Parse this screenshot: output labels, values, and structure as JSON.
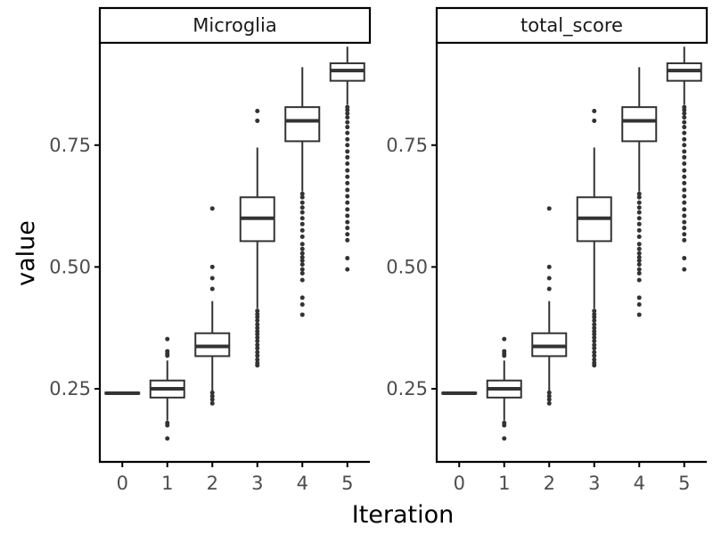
{
  "chart_data": {
    "type": "boxplot",
    "xlabel": "Iteration",
    "ylabel": "value",
    "ylim": [
      0.1,
      0.96
    ],
    "yticks": [
      0.25,
      0.5,
      0.75
    ],
    "ytick_labels": [
      "0.25",
      "0.50",
      "0.75"
    ],
    "categories": [
      "0",
      "1",
      "2",
      "3",
      "4",
      "5"
    ],
    "facets": [
      {
        "title": "Microglia",
        "boxes": [
          {
            "x": "0",
            "whisker_low": 0.238,
            "q1": 0.24,
            "median": 0.241,
            "q3": 0.242,
            "whisker_high": 0.244,
            "outliers": []
          },
          {
            "x": "1",
            "whisker_low": 0.185,
            "q1": 0.232,
            "median": 0.25,
            "q3": 0.267,
            "whisker_high": 0.308,
            "outliers": [
              0.148,
              0.175,
              0.18,
              0.318,
              0.322,
              0.327,
              0.352
            ]
          },
          {
            "x": "2",
            "whisker_low": 0.245,
            "q1": 0.317,
            "median": 0.337,
            "q3": 0.364,
            "whisker_high": 0.43,
            "outliers": [
              0.22,
              0.228,
              0.235,
              0.242,
              0.455,
              0.477,
              0.5,
              0.62
            ]
          },
          {
            "x": "3",
            "whisker_low": 0.415,
            "q1": 0.553,
            "median": 0.6,
            "q3": 0.643,
            "whisker_high": 0.745,
            "outliers": [
              0.298,
              0.303,
              0.31,
              0.318,
              0.325,
              0.333,
              0.34,
              0.348,
              0.355,
              0.362,
              0.368,
              0.375,
              0.382,
              0.39,
              0.397,
              0.403,
              0.41,
              0.8,
              0.82
            ]
          },
          {
            "x": "4",
            "whisker_low": 0.655,
            "q1": 0.758,
            "median": 0.8,
            "q3": 0.828,
            "whisker_high": 0.91,
            "outliers": [
              0.402,
              0.423,
              0.437,
              0.473,
              0.487,
              0.495,
              0.505,
              0.513,
              0.52,
              0.528,
              0.537,
              0.547,
              0.562,
              0.575,
              0.588,
              0.6,
              0.612,
              0.622,
              0.632,
              0.643,
              0.65
            ]
          },
          {
            "x": "5",
            "whisker_low": 0.833,
            "q1": 0.882,
            "median": 0.903,
            "q3": 0.918,
            "whisker_high": 0.952,
            "outliers": [
              0.495,
              0.518,
              0.555,
              0.567,
              0.58,
              0.592,
              0.605,
              0.618,
              0.632,
              0.645,
              0.658,
              0.672,
              0.685,
              0.698,
              0.712,
              0.725,
              0.737,
              0.75,
              0.762,
              0.775,
              0.787,
              0.797,
              0.807,
              0.815,
              0.822,
              0.828
            ]
          }
        ]
      },
      {
        "title": "total_score",
        "boxes": [
          {
            "x": "0",
            "whisker_low": 0.238,
            "q1": 0.24,
            "median": 0.241,
            "q3": 0.242,
            "whisker_high": 0.244,
            "outliers": []
          },
          {
            "x": "1",
            "whisker_low": 0.185,
            "q1": 0.232,
            "median": 0.25,
            "q3": 0.267,
            "whisker_high": 0.308,
            "outliers": [
              0.148,
              0.175,
              0.18,
              0.318,
              0.322,
              0.327,
              0.352
            ]
          },
          {
            "x": "2",
            "whisker_low": 0.245,
            "q1": 0.317,
            "median": 0.337,
            "q3": 0.364,
            "whisker_high": 0.43,
            "outliers": [
              0.22,
              0.228,
              0.235,
              0.242,
              0.455,
              0.477,
              0.5,
              0.62
            ]
          },
          {
            "x": "3",
            "whisker_low": 0.415,
            "q1": 0.553,
            "median": 0.6,
            "q3": 0.643,
            "whisker_high": 0.745,
            "outliers": [
              0.298,
              0.303,
              0.31,
              0.318,
              0.325,
              0.333,
              0.34,
              0.348,
              0.355,
              0.362,
              0.368,
              0.375,
              0.382,
              0.39,
              0.397,
              0.403,
              0.41,
              0.8,
              0.82
            ]
          },
          {
            "x": "4",
            "whisker_low": 0.655,
            "q1": 0.758,
            "median": 0.8,
            "q3": 0.828,
            "whisker_high": 0.91,
            "outliers": [
              0.402,
              0.423,
              0.437,
              0.473,
              0.487,
              0.495,
              0.505,
              0.513,
              0.52,
              0.528,
              0.537,
              0.547,
              0.562,
              0.575,
              0.588,
              0.6,
              0.612,
              0.622,
              0.632,
              0.643,
              0.65
            ]
          },
          {
            "x": "5",
            "whisker_low": 0.833,
            "q1": 0.882,
            "median": 0.903,
            "q3": 0.918,
            "whisker_high": 0.952,
            "outliers": [
              0.495,
              0.518,
              0.555,
              0.567,
              0.58,
              0.592,
              0.605,
              0.618,
              0.632,
              0.645,
              0.658,
              0.672,
              0.685,
              0.698,
              0.712,
              0.725,
              0.737,
              0.75,
              0.762,
              0.775,
              0.787,
              0.797,
              0.807,
              0.815,
              0.822,
              0.828
            ]
          }
        ]
      }
    ],
    "colors": {
      "box_line": "#333333",
      "axis": "#000000",
      "tick_text": "#4d4d4d",
      "background": "#ffffff"
    },
    "grid": false,
    "legend": "none"
  }
}
